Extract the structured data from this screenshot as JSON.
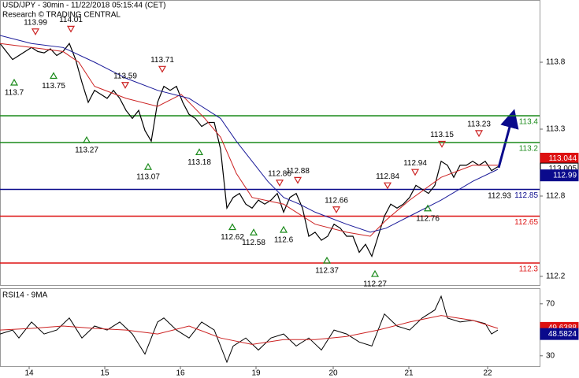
{
  "chart_data": {
    "type": "line",
    "title": "USD/JPY - 30min - 11/22/2018 05:15:44 (CET)",
    "subtitle": "Research © TRADING CENTRAL",
    "xlim": [
      0,
      342.5
    ],
    "ylim": [
      112.135,
      114.265
    ],
    "xticks": [
      {
        "value": 18.5,
        "label": "14"
      },
      {
        "value": 66.5,
        "label": "15"
      },
      {
        "value": 114.5,
        "label": "16"
      },
      {
        "value": 162.5,
        "label": "19"
      },
      {
        "value": 211.5,
        "label": "20"
      },
      {
        "value": 259.5,
        "label": "21"
      },
      {
        "value": 309.5,
        "label": "22"
      }
    ],
    "yticks": [
      113.8,
      113.3,
      112.8,
      112.2
    ],
    "series": [
      {
        "name": "USD/JPY",
        "color": "#000000",
        "x": [
          0,
          4,
          8,
          12,
          16,
          20,
          24,
          28,
          32,
          36,
          40,
          44,
          48,
          52,
          56,
          60,
          64,
          68,
          72,
          76,
          80,
          84,
          88,
          92,
          96,
          100,
          104,
          108,
          112,
          116,
          120,
          124,
          128,
          132,
          136,
          140,
          144,
          148,
          152,
          156,
          160,
          164,
          168,
          172,
          176,
          180,
          184,
          188,
          192,
          196,
          200,
          204,
          208,
          212,
          216,
          220,
          224,
          228,
          232,
          236,
          240,
          244,
          248,
          252,
          256,
          260,
          264,
          268,
          272,
          276,
          280,
          284,
          288,
          292,
          296,
          300,
          304,
          308,
          312,
          316
        ],
        "values": [
          113.94,
          113.88,
          113.82,
          113.85,
          113.88,
          113.91,
          113.88,
          113.87,
          113.9,
          113.85,
          113.88,
          113.94,
          113.82,
          113.65,
          113.5,
          113.59,
          113.56,
          113.53,
          113.59,
          113.53,
          113.44,
          113.38,
          113.44,
          113.29,
          113.21,
          113.5,
          113.62,
          113.59,
          113.62,
          113.5,
          113.41,
          113.38,
          113.32,
          113.35,
          113.35,
          113.15,
          112.71,
          112.79,
          112.82,
          112.74,
          112.71,
          112.77,
          112.74,
          112.77,
          112.82,
          112.68,
          112.79,
          112.82,
          112.71,
          112.5,
          112.53,
          112.47,
          112.5,
          112.59,
          112.56,
          112.5,
          112.5,
          112.38,
          112.44,
          112.35,
          112.5,
          112.65,
          112.74,
          112.71,
          112.74,
          112.79,
          112.88,
          112.85,
          112.82,
          112.88,
          113.06,
          113.03,
          112.94,
          113.03,
          113.03,
          113.06,
          113.03,
          113.06,
          112.99,
          113.02
        ]
      },
      {
        "color": "#cc2222",
        "x": [
          0,
          20,
          40,
          50,
          60,
          80,
          100,
          115,
          130,
          140,
          150,
          160,
          180,
          200,
          220,
          235,
          245,
          260,
          280,
          300,
          316
        ],
        "values": [
          113.94,
          113.91,
          113.88,
          113.8,
          113.62,
          113.53,
          113.47,
          113.56,
          113.38,
          113.24,
          112.97,
          112.79,
          112.74,
          112.59,
          112.53,
          112.5,
          112.62,
          112.77,
          112.94,
          113.03,
          113.03
        ]
      },
      {
        "color": "#1a1a99",
        "x": [
          0,
          20,
          40,
          60,
          80,
          100,
          120,
          140,
          150,
          160,
          170,
          180,
          190,
          200,
          220,
          235,
          245,
          260,
          280,
          300,
          316
        ],
        "values": [
          114.0,
          113.94,
          113.91,
          113.8,
          113.68,
          113.59,
          113.53,
          113.38,
          113.21,
          113.06,
          112.91,
          112.79,
          112.74,
          112.68,
          112.59,
          112.53,
          112.56,
          112.65,
          112.77,
          112.91,
          113.0
        ]
      }
    ],
    "levels": [
      {
        "value": 113.4,
        "color": "#1a8a1a"
      },
      {
        "value": 113.2,
        "color": "#1a8a1a"
      },
      {
        "value": 112.85,
        "color": "#0a0a8c"
      },
      {
        "value": 112.65,
        "color": "#dd1111"
      },
      {
        "value": 112.3,
        "color": "#dd1111"
      }
    ],
    "annotations": [
      {
        "x": 22.5,
        "value": 113.99,
        "kind": "high"
      },
      {
        "x": 45,
        "value": 114.01,
        "kind": "high"
      },
      {
        "x": 9,
        "value": 113.7,
        "kind": "low"
      },
      {
        "x": 34,
        "value": 113.75,
        "kind": "low"
      },
      {
        "x": 79.5,
        "value": 113.59,
        "kind": "high"
      },
      {
        "x": 103,
        "value": 113.71,
        "kind": "high"
      },
      {
        "x": 55,
        "value": 113.27,
        "kind": "low"
      },
      {
        "x": 94,
        "value": 113.07,
        "kind": "low"
      },
      {
        "x": 126.5,
        "value": 113.18,
        "kind": "low"
      },
      {
        "x": 177.5,
        "value": 112.86,
        "kind": "high"
      },
      {
        "x": 189,
        "value": 112.88,
        "kind": "high"
      },
      {
        "x": 147.5,
        "value": 112.62,
        "kind": "low"
      },
      {
        "x": 161,
        "value": 112.58,
        "kind": "low"
      },
      {
        "x": 180,
        "value": 112.6,
        "kind": "low"
      },
      {
        "x": 213.5,
        "value": 112.66,
        "kind": "high"
      },
      {
        "x": 207.5,
        "value": 112.37,
        "kind": "low"
      },
      {
        "x": 238,
        "value": 112.27,
        "kind": "low"
      },
      {
        "x": 246,
        "value": 112.84,
        "kind": "high"
      },
      {
        "x": 263.5,
        "value": 112.94,
        "kind": "high"
      },
      {
        "x": 271.5,
        "value": 112.76,
        "kind": "low"
      },
      {
        "x": 280.5,
        "value": 113.15,
        "kind": "high"
      },
      {
        "x": 304,
        "value": 113.23,
        "kind": "high"
      },
      {
        "x": 317,
        "value": 112.93,
        "kind": "low",
        "marker": false
      }
    ],
    "price_labels": [
      {
        "value": 113.044,
        "label": "113.044",
        "color": "#dd1111"
      },
      {
        "value": 113.005,
        "label": "113.005",
        "color": "#ffffff"
      },
      {
        "value": 112.99,
        "label": "112.99",
        "color": "#0a0a8c"
      }
    ],
    "rsi": {
      "title": "RSI14 - 9MA",
      "ylim": [
        22,
        82
      ],
      "yticks": [
        70,
        30
      ],
      "series": [
        {
          "color": "#000000",
          "x": [
            0,
            8,
            12,
            20,
            28,
            36,
            44,
            52,
            60,
            68,
            76,
            84,
            92,
            100,
            104,
            112,
            120,
            128,
            136,
            144,
            148,
            156,
            164,
            172,
            180,
            188,
            196,
            204,
            212,
            220,
            228,
            236,
            244,
            252,
            260,
            268,
            276,
            280,
            284,
            292,
            300,
            308,
            312,
            316
          ],
          "values": [
            46.8,
            49.8,
            43.7,
            56.0,
            46.8,
            49.8,
            59.1,
            43.7,
            52.9,
            49.8,
            56.0,
            46.8,
            31.3,
            56.0,
            59.1,
            49.8,
            43.7,
            56.0,
            49.8,
            25.1,
            37.5,
            43.7,
            34.4,
            43.7,
            46.8,
            37.5,
            43.7,
            34.4,
            49.8,
            46.8,
            40.6,
            37.5,
            62.2,
            52.9,
            49.8,
            59.1,
            65.3,
            75.8,
            59.1,
            56.0,
            57.3,
            54.8,
            46.8,
            49.8
          ]
        },
        {
          "color": "#cc2222",
          "x": [
            0,
            20,
            40,
            60,
            80,
            100,
            120,
            140,
            160,
            180,
            200,
            220,
            240,
            260,
            280,
            300,
            316
          ],
          "values": [
            49.8,
            51.1,
            52.9,
            51.1,
            49.8,
            46.8,
            52.9,
            43.7,
            38.7,
            42.4,
            42.4,
            44.9,
            49.8,
            56.0,
            61.0,
            57.3,
            51.1
          ]
        }
      ],
      "value_labels": [
        {
          "value": 49.6388,
          "label": "49.6388",
          "color": "#dd1111"
        },
        {
          "value": 48.5824,
          "label": "48.5824",
          "color": "#0a0a8c"
        }
      ]
    }
  }
}
